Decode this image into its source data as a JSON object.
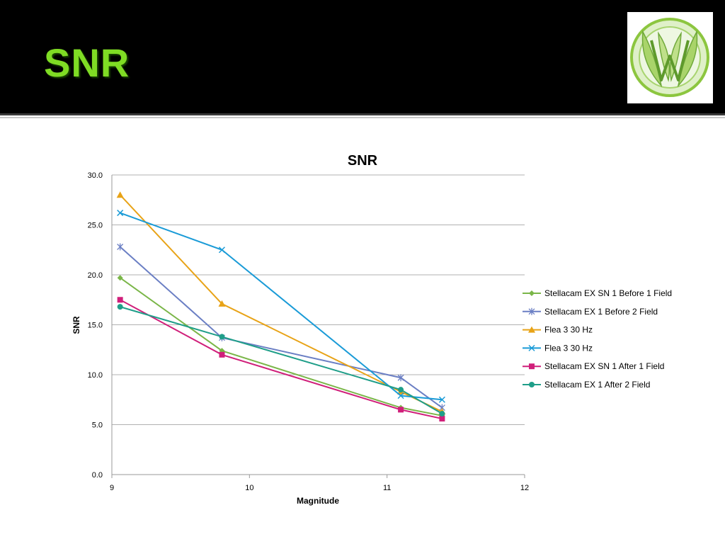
{
  "slide": {
    "title": "SNR",
    "logo_icon": "wreath-w-logo",
    "logo_color": "#8cc63f"
  },
  "chart_data": {
    "type": "line",
    "title": "SNR",
    "xlabel": "Magnitude",
    "ylabel": "SNR",
    "xlim": [
      9,
      12
    ],
    "ylim": [
      0,
      30
    ],
    "x_ticks": [
      "9",
      "10",
      "11",
      "12"
    ],
    "y_ticks": [
      "0.0",
      "5.0",
      "10.0",
      "15.0",
      "20.0",
      "25.0",
      "30.0"
    ],
    "grid": "horizontal",
    "legend_position": "right",
    "series": [
      {
        "name": "Stellacam EX SN 1 Before 1 Field",
        "color": "#7ab648",
        "marker": "diamond",
        "x": [
          9.06,
          9.8,
          11.1,
          11.4
        ],
        "y": [
          19.7,
          12.4,
          6.7,
          5.9
        ]
      },
      {
        "name": "Stellacam EX 1 Before 2 Field",
        "color": "#6b7fc4",
        "marker": "star",
        "x": [
          9.06,
          9.8,
          11.1,
          11.4
        ],
        "y": [
          22.8,
          13.7,
          9.7,
          6.7
        ]
      },
      {
        "name": "Flea 3 30 Hz",
        "color": "#e8a317",
        "marker": "triangle",
        "x": [
          9.06,
          9.8,
          11.1,
          11.4
        ],
        "y": [
          28.0,
          17.1,
          8.3,
          6.3
        ]
      },
      {
        "name": "Flea 3 30 Hz",
        "color": "#1a9bd7",
        "marker": "x",
        "x": [
          9.06,
          9.8,
          11.1,
          11.4
        ],
        "y": [
          26.2,
          22.5,
          7.9,
          7.5
        ]
      },
      {
        "name": "Stellacam EX SN 1 After 1 Field",
        "color": "#d01f7a",
        "marker": "square",
        "x": [
          9.06,
          9.8,
          11.1,
          11.4
        ],
        "y": [
          17.5,
          12.0,
          6.5,
          5.6
        ]
      },
      {
        "name": "Stellacam EX 1 After 2 Field",
        "color": "#1f9e89",
        "marker": "circle",
        "x": [
          9.06,
          9.8,
          11.1,
          11.4
        ],
        "y": [
          16.8,
          13.8,
          8.5,
          6.1
        ]
      }
    ]
  }
}
